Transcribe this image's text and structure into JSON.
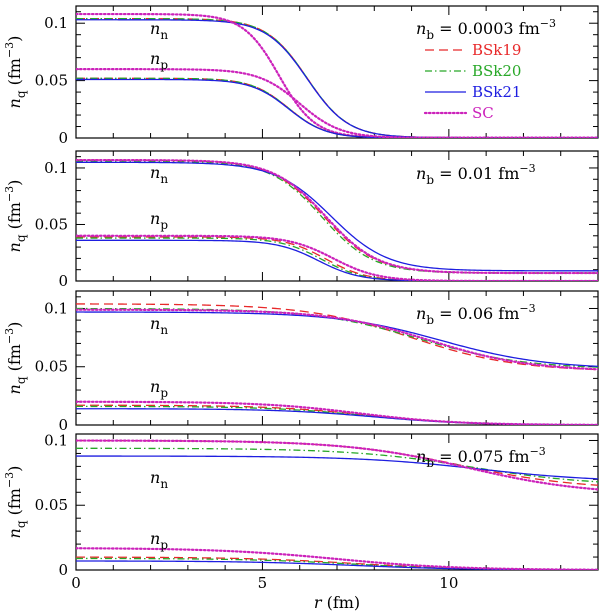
{
  "chart_data": {
    "type": "line",
    "xlabel": "r (fm)",
    "xlim": [
      0,
      14
    ],
    "xticks": [
      0,
      5,
      10
    ],
    "xtick_labels": [
      "0",
      "5",
      "10"
    ],
    "legend": {
      "placement": "top-right of first panel",
      "entries": [
        {
          "key": "BSk19",
          "label": "BSk19",
          "color": "#e8292a",
          "style": "dashed"
        },
        {
          "key": "BSk20",
          "label": "BSk20",
          "color": "#28a828",
          "style": "dashdot"
        },
        {
          "key": "BSk21",
          "label": "BSk21",
          "color": "#1e1ee0",
          "style": "solid"
        },
        {
          "key": "SC",
          "label": "SC",
          "color": "#cc22bb",
          "style": "dotted"
        }
      ]
    },
    "panels": [
      {
        "ylabel": "n_q (fm^-3)",
        "ylim": [
          0,
          0.115
        ],
        "yticks": [
          0,
          0.05,
          0.1
        ],
        "ytick_labels": [
          "0",
          "0.05",
          "0.1"
        ],
        "annotation": {
          "prefix": "n",
          "sub": "b",
          "value": " = 0.0003  fm",
          "sup": "−3"
        },
        "label_n": "n",
        "label_n_sub": "n",
        "label_p": "n",
        "label_p_sub": "p",
        "series": [
          {
            "key": "BSk19",
            "species": "n",
            "inner": 0.104,
            "outer": 0.0003,
            "R": 6.2,
            "a": 0.55
          },
          {
            "key": "BSk20",
            "species": "n",
            "inner": 0.104,
            "outer": 0.0003,
            "R": 6.2,
            "a": 0.55
          },
          {
            "key": "BSk21",
            "species": "n",
            "inner": 0.103,
            "outer": 0.0003,
            "R": 6.2,
            "a": 0.55
          },
          {
            "key": "SC",
            "species": "n",
            "inner": 0.108,
            "outer": 0.0003,
            "R": 5.45,
            "a": 0.48
          },
          {
            "key": "BSk19",
            "species": "p",
            "inner": 0.052,
            "outer": 0.0,
            "R": 5.7,
            "a": 0.5
          },
          {
            "key": "BSk20",
            "species": "p",
            "inner": 0.052,
            "outer": 0.0,
            "R": 5.7,
            "a": 0.5
          },
          {
            "key": "BSk21",
            "species": "p",
            "inner": 0.051,
            "outer": 0.0,
            "R": 5.7,
            "a": 0.5
          },
          {
            "key": "SC",
            "species": "p",
            "inner": 0.06,
            "outer": 0.0,
            "R": 6.0,
            "a": 0.55
          }
        ]
      },
      {
        "ylabel": "n_q (fm^-3)",
        "ylim": [
          0,
          0.115
        ],
        "yticks": [
          0,
          0.05,
          0.1
        ],
        "ytick_labels": [
          "0",
          "0.05",
          "0.1"
        ],
        "annotation": {
          "prefix": "n",
          "sub": "b",
          "value": " = 0.01  fm",
          "sup": "−3"
        },
        "label_n": "n",
        "label_n_sub": "n",
        "label_p": "n",
        "label_p_sub": "p",
        "series": [
          {
            "key": "BSk19",
            "species": "n",
            "inner": 0.107,
            "outer": 0.007,
            "R": 6.65,
            "a": 0.7
          },
          {
            "key": "BSk20",
            "species": "n",
            "inner": 0.106,
            "outer": 0.007,
            "R": 6.6,
            "a": 0.68
          },
          {
            "key": "BSk21",
            "species": "n",
            "inner": 0.105,
            "outer": 0.009,
            "R": 6.85,
            "a": 0.75
          },
          {
            "key": "SC",
            "species": "n",
            "inner": 0.107,
            "outer": 0.007,
            "R": 6.7,
            "a": 0.7
          },
          {
            "key": "BSk19",
            "species": "p",
            "inner": 0.039,
            "outer": 0.0,
            "R": 6.7,
            "a": 0.55
          },
          {
            "key": "BSk20",
            "species": "p",
            "inner": 0.038,
            "outer": 0.0,
            "R": 6.6,
            "a": 0.55
          },
          {
            "key": "BSk21",
            "species": "p",
            "inner": 0.036,
            "outer": 0.0,
            "R": 6.5,
            "a": 0.55
          },
          {
            "key": "SC",
            "species": "p",
            "inner": 0.04,
            "outer": 0.0,
            "R": 6.9,
            "a": 0.6
          }
        ]
      },
      {
        "ylabel": "n_q (fm^-3)",
        "ylim": [
          0,
          0.115
        ],
        "yticks": [
          0,
          0.05,
          0.1
        ],
        "ytick_labels": [
          "0",
          "0.05",
          "0.1"
        ],
        "annotation": {
          "prefix": "n",
          "sub": "b",
          "value": " = 0.06  fm",
          "sup": "−3"
        },
        "label_n": "n",
        "label_n_sub": "n",
        "label_p": "n",
        "label_p_sub": "p",
        "series": [
          {
            "key": "BSk19",
            "species": "n",
            "inner": 0.104,
            "outer": 0.046,
            "R": 9.0,
            "a": 1.4
          },
          {
            "key": "BSk20",
            "species": "n",
            "inner": 0.1,
            "outer": 0.048,
            "R": 9.2,
            "a": 1.4
          },
          {
            "key": "BSk21",
            "species": "n",
            "inner": 0.097,
            "outer": 0.048,
            "R": 9.8,
            "a": 1.4
          },
          {
            "key": "SC",
            "species": "n",
            "inner": 0.099,
            "outer": 0.046,
            "R": 9.5,
            "a": 1.35
          },
          {
            "key": "BSk19",
            "species": "p",
            "inner": 0.017,
            "outer": 0.0,
            "R": 7.8,
            "a": 1.3
          },
          {
            "key": "BSk20",
            "species": "p",
            "inner": 0.016,
            "outer": 0.0,
            "R": 7.8,
            "a": 1.3
          },
          {
            "key": "BSk21",
            "species": "p",
            "inner": 0.014,
            "outer": 0.0,
            "R": 8.0,
            "a": 1.3
          },
          {
            "key": "SC",
            "species": "p",
            "inner": 0.02,
            "outer": 0.0,
            "R": 7.6,
            "a": 1.3
          }
        ]
      },
      {
        "ylabel": "n_q (fm^-3)",
        "ylim": [
          0,
          0.105
        ],
        "yticks": [
          0,
          0.05,
          0.1
        ],
        "ytick_labels": [
          "0",
          "0.05",
          "0.1"
        ],
        "annotation": {
          "prefix": "n",
          "sub": "b",
          "value": " = 0.075  fm",
          "sup": "−3"
        },
        "label_n": "n",
        "label_n_sub": "n",
        "label_p": "n",
        "label_p_sub": "p",
        "series": [
          {
            "key": "BSk19",
            "species": "n",
            "inner": 0.1,
            "outer": 0.062,
            "R": 10.3,
            "a": 1.6
          },
          {
            "key": "BSk20",
            "species": "n",
            "inner": 0.094,
            "outer": 0.065,
            "R": 10.6,
            "a": 1.6
          },
          {
            "key": "BSk21",
            "species": "n",
            "inner": 0.088,
            "outer": 0.068,
            "R": 10.8,
            "a": 1.6
          },
          {
            "key": "SC",
            "species": "n",
            "inner": 0.1,
            "outer": 0.058,
            "R": 10.5,
            "a": 1.6
          },
          {
            "key": "BSk19",
            "species": "p",
            "inner": 0.01,
            "outer": 0.0,
            "R": 7.5,
            "a": 1.5
          },
          {
            "key": "BSk20",
            "species": "p",
            "inner": 0.009,
            "outer": 0.0,
            "R": 7.5,
            "a": 1.5
          },
          {
            "key": "BSk21",
            "species": "p",
            "inner": 0.007,
            "outer": 0.0,
            "R": 7.5,
            "a": 1.5
          },
          {
            "key": "SC",
            "species": "p",
            "inner": 0.017,
            "outer": 0.0,
            "R": 7.0,
            "a": 1.6
          }
        ]
      }
    ]
  }
}
